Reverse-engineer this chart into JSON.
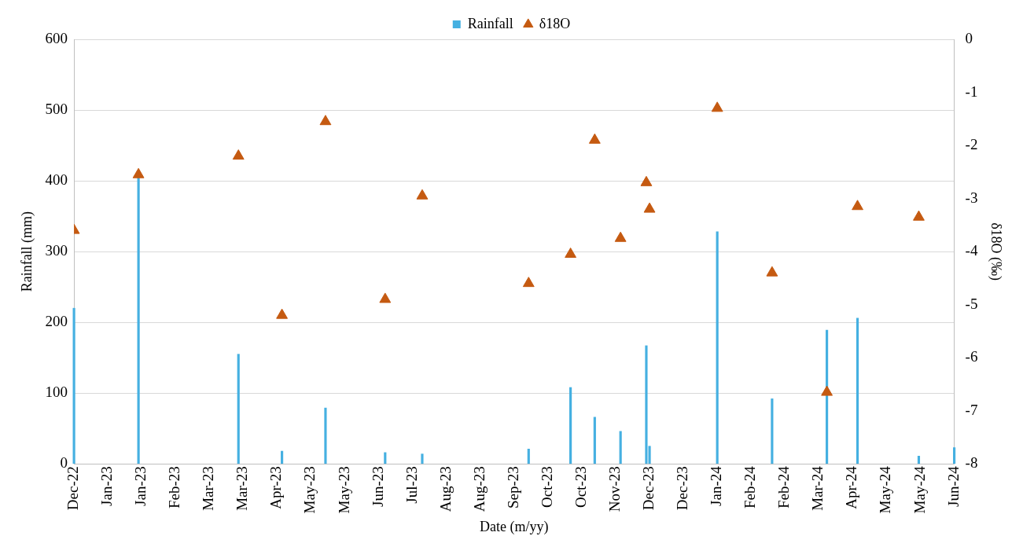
{
  "chart_data": {
    "type": "bar",
    "xlabel": "Date (m/yy)",
    "ylabel": "Rainfall (mm)",
    "y2label": "δ18O (‰)",
    "x": [
      "2022-12-14",
      "2023-01-23",
      "2023-03-26",
      "2023-04-22",
      "2023-05-19",
      "2023-06-25",
      "2023-07-18",
      "2023-09-22",
      "2023-10-18",
      "2023-11-02",
      "2023-11-18",
      "2023-12-04",
      "2023-12-06",
      "2024-01-17",
      "2024-02-20",
      "2024-03-25",
      "2024-04-13",
      "2024-05-21",
      "2024-06-12"
    ],
    "series": [
      {
        "name": "Rainfall",
        "color": "#45b0e1",
        "values": [
          220,
          405,
          155,
          18,
          79,
          16,
          14,
          21,
          108,
          66,
          46,
          167,
          25,
          328,
          92,
          189,
          206,
          11,
          23
        ]
      },
      {
        "name": "δ18O",
        "type": "scatter",
        "axis": "y2",
        "color": "#c55a11",
        "marker": "triangle",
        "values": [
          -3.6,
          -2.55,
          -2.2,
          -5.2,
          -1.55,
          -4.9,
          -2.95,
          -4.6,
          -4.05,
          -1.9,
          -3.75,
          -2.7,
          -3.2,
          -1.3,
          -4.4,
          -6.65,
          -3.15,
          -3.35,
          null
        ]
      }
    ],
    "xlim": [
      "2022-12-14",
      "2024-06-12"
    ],
    "xticks": [
      {
        "value": "2022-12-14",
        "label": "Dec-22"
      },
      {
        "value": "2023-01-04",
        "label": "Jan-23"
      },
      {
        "value": "2023-01-25",
        "label": "Jan-23"
      },
      {
        "value": "2023-02-15",
        "label": "Feb-23"
      },
      {
        "value": "2023-03-08",
        "label": "Mar-23"
      },
      {
        "value": "2023-03-29",
        "label": "Mar-23"
      },
      {
        "value": "2023-04-19",
        "label": "Apr-23"
      },
      {
        "value": "2023-05-10",
        "label": "May-23"
      },
      {
        "value": "2023-05-31",
        "label": "May-23"
      },
      {
        "value": "2023-06-21",
        "label": "Jun-23"
      },
      {
        "value": "2023-07-12",
        "label": "Jul-23"
      },
      {
        "value": "2023-08-02",
        "label": "Aug-23"
      },
      {
        "value": "2023-08-23",
        "label": "Aug-23"
      },
      {
        "value": "2023-09-13",
        "label": "Sep-23"
      },
      {
        "value": "2023-10-04",
        "label": "Oct-23"
      },
      {
        "value": "2023-10-25",
        "label": "Oct-23"
      },
      {
        "value": "2023-11-15",
        "label": "Nov-23"
      },
      {
        "value": "2023-12-06",
        "label": "Dec-23"
      },
      {
        "value": "2023-12-27",
        "label": "Dec-23"
      },
      {
        "value": "2024-01-17",
        "label": "Jan-24"
      },
      {
        "value": "2024-02-07",
        "label": "Feb-24"
      },
      {
        "value": "2024-02-28",
        "label": "Feb-24"
      },
      {
        "value": "2024-03-20",
        "label": "Mar-24"
      },
      {
        "value": "2024-04-10",
        "label": "Apr-24"
      },
      {
        "value": "2024-05-01",
        "label": "May-24"
      },
      {
        "value": "2024-05-22",
        "label": "May-24"
      },
      {
        "value": "2024-06-12",
        "label": "Jun-24"
      }
    ],
    "ylim": [
      0,
      600
    ],
    "yticks": [
      0,
      100,
      200,
      300,
      400,
      500,
      600
    ],
    "y2lim": [
      -8,
      0
    ],
    "y2ticks": [
      -8,
      -7,
      -6,
      -5,
      -4,
      -3,
      -2,
      -1,
      0
    ],
    "grid": "y",
    "legend": "top"
  }
}
